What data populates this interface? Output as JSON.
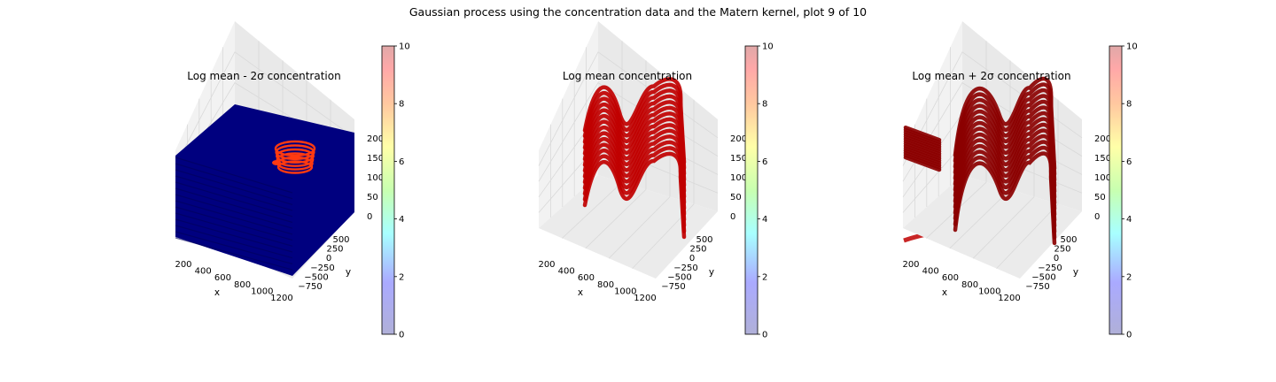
{
  "figure": {
    "suptitle": "Gaussian process using the  concentration data and the Matern kernel, plot 9 of 10"
  },
  "chart_data": [
    {
      "type": "scatter",
      "subtype": "3d-scatter",
      "title": "Log mean - 2σ concentration",
      "xlabel": "x",
      "ylabel": "y",
      "zlabel": "",
      "x_ticks": [
        "200",
        "400",
        "600",
        "800",
        "1000",
        "1200"
      ],
      "y_ticks": [
        "−750",
        "−500",
        "−250",
        "0",
        "250",
        "500"
      ],
      "z_ticks": [
        "0",
        "50",
        "100",
        "150",
        "200"
      ],
      "xlim": [
        100,
        1250
      ],
      "ylim": [
        -850,
        650
      ],
      "zlim": [
        0,
        200
      ],
      "colorbar": {
        "ticks": [
          "0",
          "2",
          "4",
          "6",
          "8",
          "10"
        ],
        "range": [
          0,
          10
        ],
        "colormap": "jet"
      },
      "description_value": "Nearly all points at value ~0 (dark blue) filling the whole volume; a small ring of points with values ~6-8 (orange-red) near x~700-900, y~400, z~120-180"
    },
    {
      "type": "scatter",
      "subtype": "3d-scatter",
      "title": "Log mean concentration",
      "xlabel": "x",
      "ylabel": "y",
      "zlabel": "",
      "x_ticks": [
        "200",
        "400",
        "600",
        "800",
        "1000",
        "1200"
      ],
      "y_ticks": [
        "−750",
        "−500",
        "−250",
        "0",
        "250",
        "500"
      ],
      "z_ticks": [
        "0",
        "50",
        "100",
        "150",
        "200"
      ],
      "xlim": [
        100,
        1250
      ],
      "ylim": [
        -850,
        650
      ],
      "zlim": [
        0,
        200
      ],
      "colorbar": {
        "ticks": [
          "0",
          "2",
          "4",
          "6",
          "8",
          "10"
        ],
        "range": [
          0,
          10
        ],
        "colormap": "jet"
      },
      "description_value": "Stacked horizontal layers of points with values ~9 (dark red) forming a wavy surface"
    },
    {
      "type": "scatter",
      "subtype": "3d-scatter",
      "title": "Log mean + 2σ concentration",
      "xlabel": "x",
      "ylabel": "y",
      "zlabel": "",
      "x_ticks": [
        "200",
        "400",
        "600",
        "800",
        "1000",
        "1200"
      ],
      "y_ticks": [
        "−750",
        "−500",
        "−250",
        "0",
        "250",
        "500"
      ],
      "z_ticks": [
        "0",
        "50",
        "100",
        "150",
        "200"
      ],
      "xlim": [
        100,
        1250
      ],
      "ylim": [
        -850,
        650
      ],
      "zlim": [
        0,
        200
      ],
      "colorbar": {
        "ticks": [
          "0",
          "2",
          "4",
          "6",
          "8",
          "10"
        ],
        "range": [
          0,
          10
        ],
        "colormap": "jet"
      },
      "description_value": "Stacked layers of points with values ~10 (dark red) forming several separate wavy sheets"
    }
  ],
  "colors": {
    "low": "#00007f",
    "mid_red": "#c00000",
    "high": "#8b0000",
    "ring": "#ff3a10",
    "pane": "#f2f2f2",
    "grid": "#d9d9d9"
  }
}
